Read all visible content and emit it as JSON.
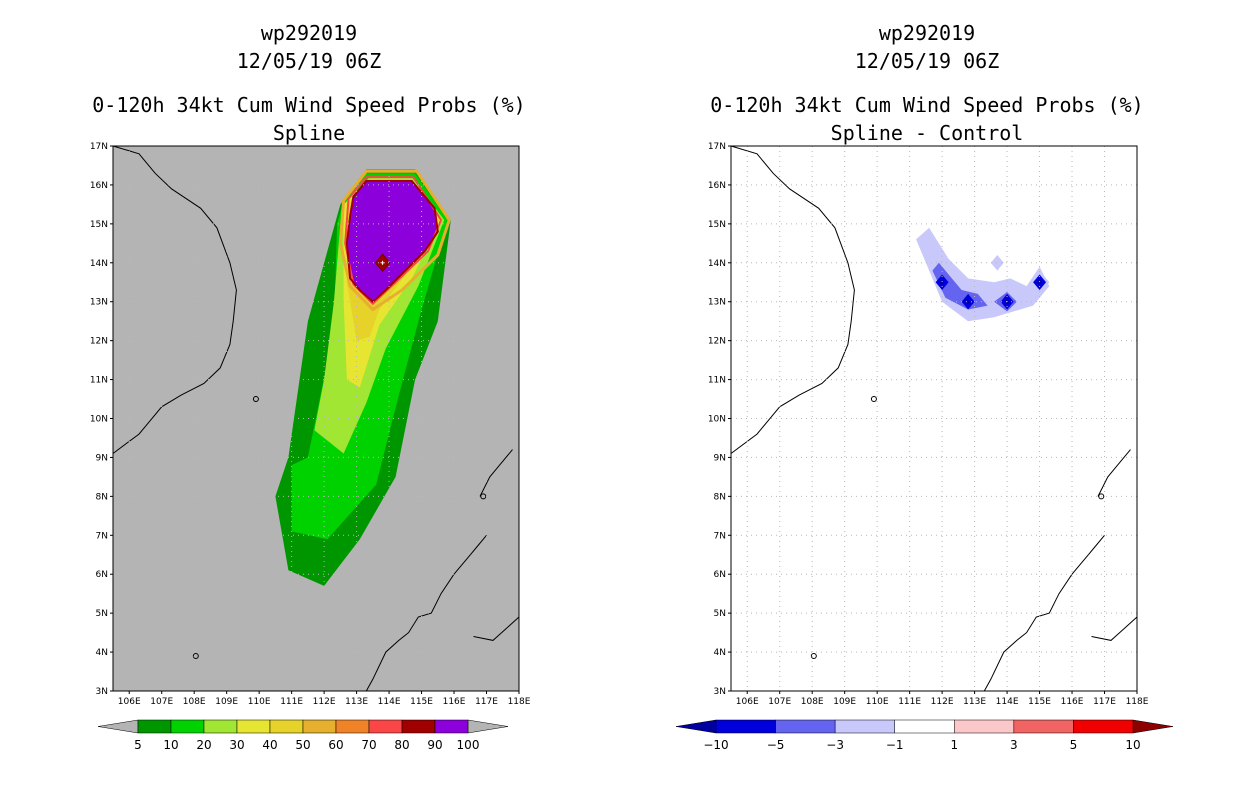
{
  "chart_data": [
    {
      "type": "heatmap",
      "storm_id": "wp292019",
      "datetime": "12/05/19 06Z",
      "title": "0-120h 34kt Cum Wind Speed Probs (%)",
      "subtitle": "Spline",
      "x_ticks": [
        "106E",
        "107E",
        "108E",
        "109E",
        "110E",
        "111E",
        "112E",
        "113E",
        "114E",
        "115E",
        "116E",
        "117E",
        "118E"
      ],
      "y_ticks": [
        "3N",
        "4N",
        "5N",
        "6N",
        "7N",
        "8N",
        "9N",
        "10N",
        "11N",
        "12N",
        "13N",
        "14N",
        "15N",
        "16N",
        "17N"
      ],
      "xlim": [
        105.5,
        118
      ],
      "ylim": [
        3,
        17
      ],
      "grid": true,
      "colorbar": {
        "labels": [
          "5",
          "10",
          "20",
          "30",
          "40",
          "50",
          "60",
          "70",
          "80",
          "90",
          "100"
        ],
        "colors": [
          "#009600",
          "#00d200",
          "#a0e632",
          "#e6e632",
          "#e6d228",
          "#e6af2d",
          "#f08228",
          "#fa4646",
          "#a00000",
          "#8c00dc"
        ],
        "under_color": "#b4b4b4",
        "over_color": "#b4b4b4"
      },
      "contour_levels": [
        {
          "level": 5,
          "color": "#009600"
        },
        {
          "level": 10,
          "color": "#00d200"
        },
        {
          "level": 20,
          "color": "#a0e632"
        },
        {
          "level": 30,
          "color": "#e6e632"
        },
        {
          "level": 40,
          "color": "#e6d228"
        },
        {
          "level": 90,
          "color": "#8c00dc"
        }
      ],
      "center": {
        "lon": 113.8,
        "lat": 14.0
      }
    },
    {
      "type": "heatmap",
      "storm_id": "wp292019",
      "datetime": "12/05/19 06Z",
      "title": "0-120h 34kt Cum Wind Speed Probs (%)",
      "subtitle": "Spline - Control",
      "x_ticks": [
        "106E",
        "107E",
        "108E",
        "109E",
        "110E",
        "111E",
        "112E",
        "113E",
        "114E",
        "115E",
        "116E",
        "117E",
        "118E"
      ],
      "y_ticks": [
        "3N",
        "4N",
        "5N",
        "6N",
        "7N",
        "8N",
        "9N",
        "10N",
        "11N",
        "12N",
        "13N",
        "14N",
        "15N",
        "16N",
        "17N"
      ],
      "xlim": [
        105.5,
        118
      ],
      "ylim": [
        3,
        17
      ],
      "grid": true,
      "colorbar": {
        "labels": [
          "-10",
          "-5",
          "-3",
          "-1",
          "1",
          "3",
          "5",
          "10"
        ],
        "colors": [
          "#0000dc",
          "#6464f0",
          "#c8c8fa",
          "#ffffff",
          "#fac8c8",
          "#f06464",
          "#f00000"
        ],
        "under_color": "#0000a0",
        "over_color": "#8c0000"
      },
      "difference_regions": [
        {
          "value_range": "-3 to -1",
          "approx_lon": [
            111.2,
            115.3
          ],
          "approx_lat": [
            12.5,
            14.5
          ]
        },
        {
          "value_range": "-5 to -3",
          "approx_lon": [
            111.7,
            114.3
          ],
          "approx_lat": [
            12.8,
            13.8
          ]
        },
        {
          "value_range": "< -10",
          "points": [
            [
              112.0,
              13.5
            ],
            [
              112.8,
              13.0
            ],
            [
              114.0,
              13.0
            ],
            [
              115.0,
              13.5
            ]
          ]
        }
      ]
    }
  ]
}
